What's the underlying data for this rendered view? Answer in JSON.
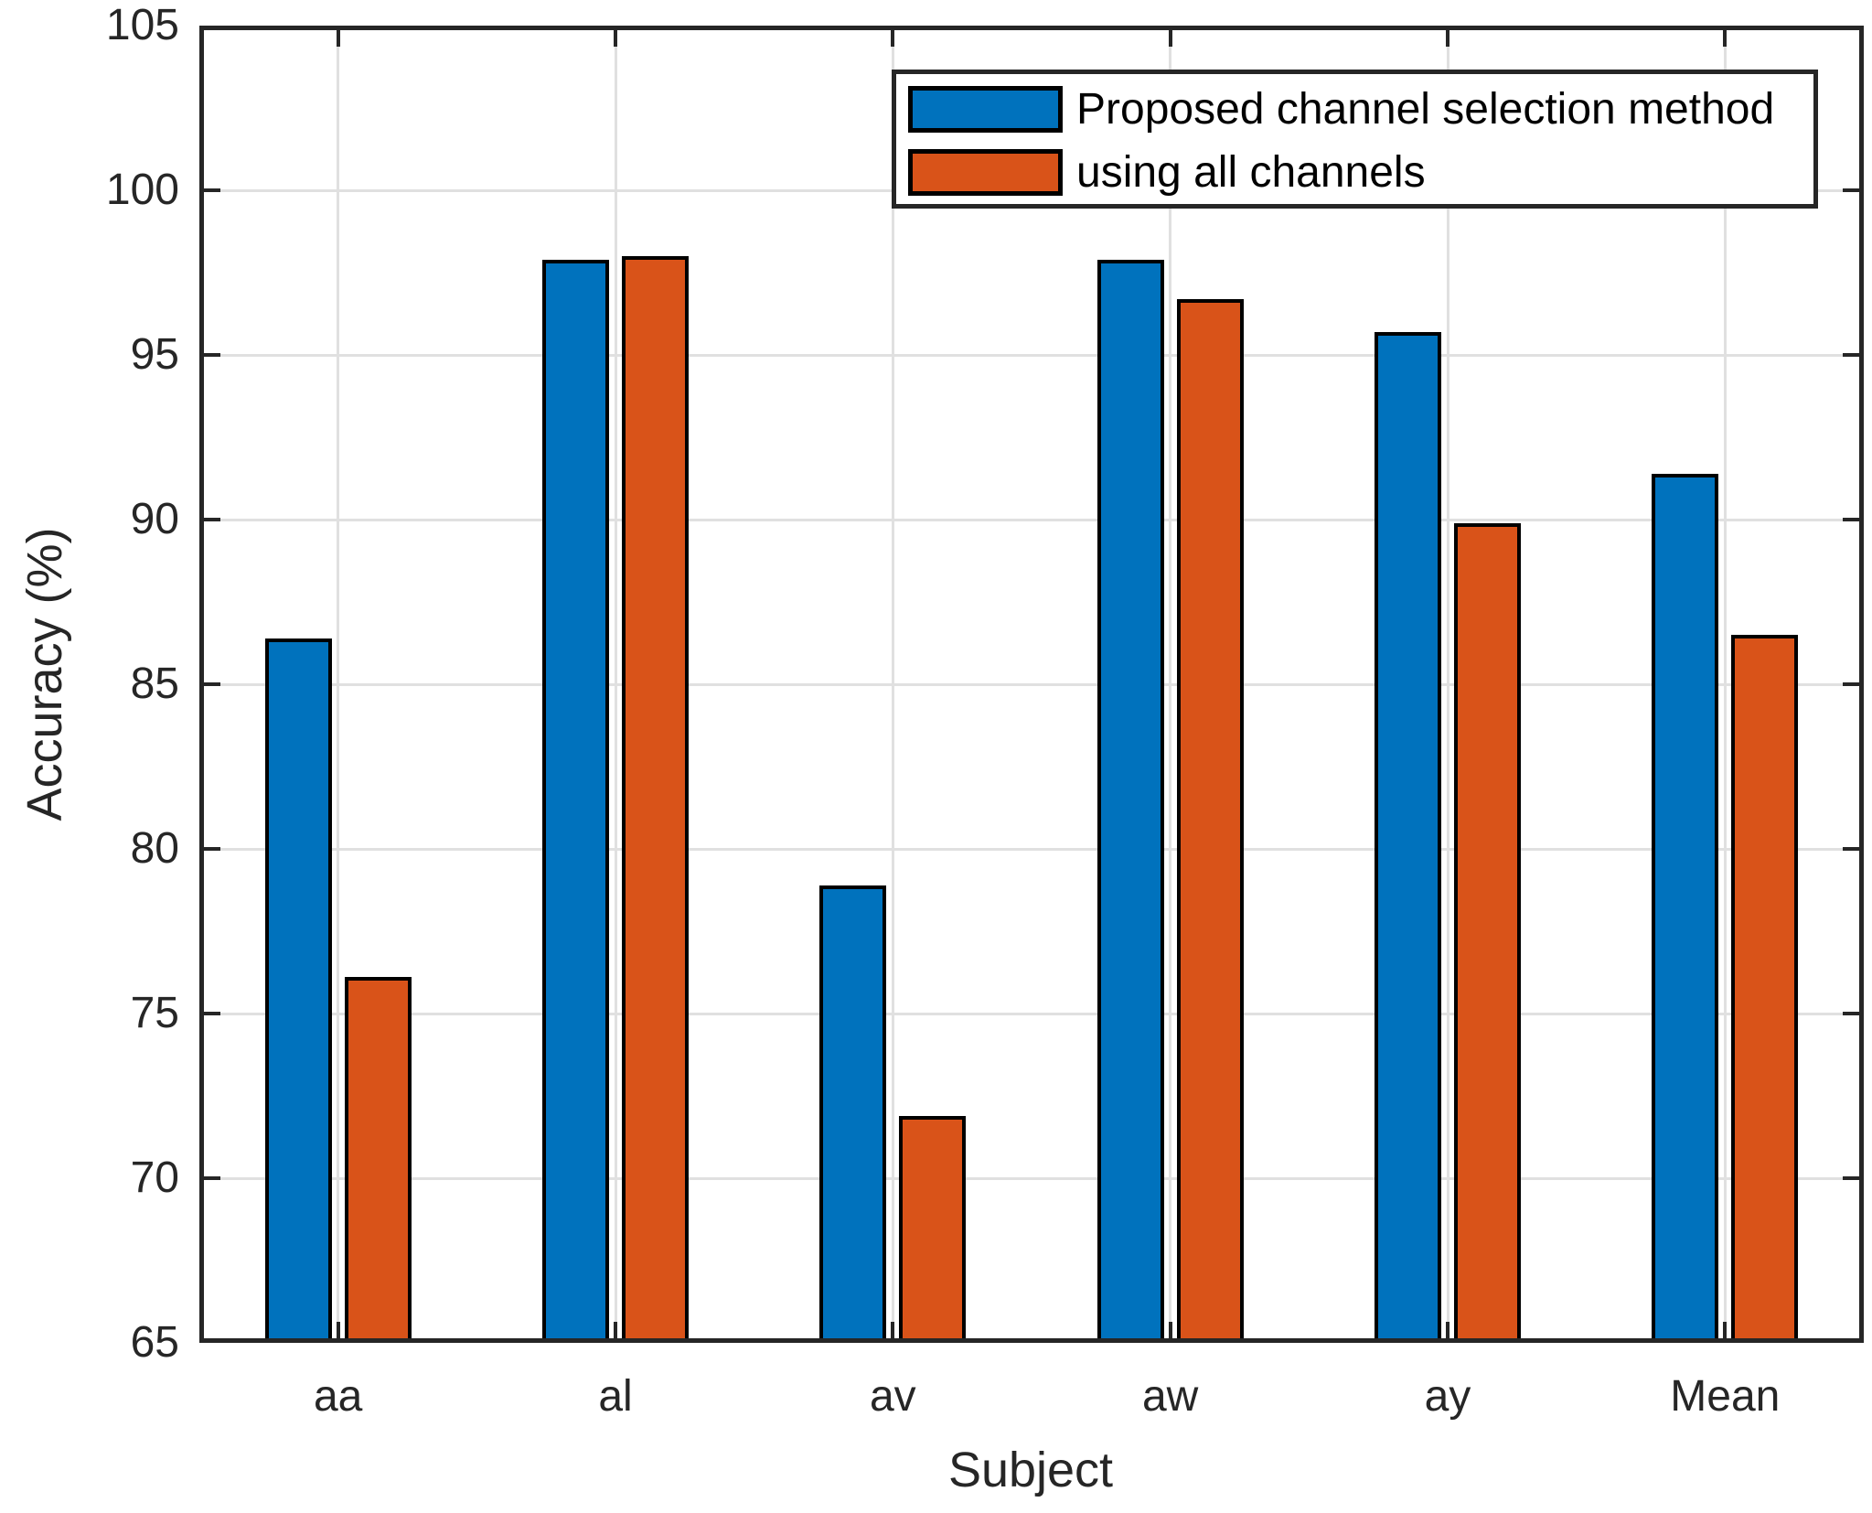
{
  "chart_data": {
    "type": "bar",
    "title": "",
    "xlabel": "Subject",
    "ylabel": "Accuracy (%)",
    "categories": [
      "aa",
      "al",
      "av",
      "aw",
      "ay",
      "Mean"
    ],
    "series": [
      {
        "key": "proposed",
        "name": "Proposed channel selection method",
        "color": "#0072BD",
        "values": [
          86.4,
          97.9,
          78.9,
          97.9,
          95.7,
          91.4
        ]
      },
      {
        "key": "all-channels",
        "name": "using all channels",
        "color": "#D95319",
        "values": [
          76.1,
          98.0,
          71.9,
          96.7,
          89.9,
          86.5
        ]
      }
    ],
    "ylim": [
      65,
      105
    ],
    "yticks": [
      65,
      70,
      75,
      80,
      85,
      90,
      95,
      100,
      105
    ],
    "grid": true,
    "legend_position": "top-right",
    "bar_edge_color": "#000000",
    "axis_color": "#262626",
    "grid_color": "#e0e0e0",
    "background_color": "#ffffff"
  }
}
